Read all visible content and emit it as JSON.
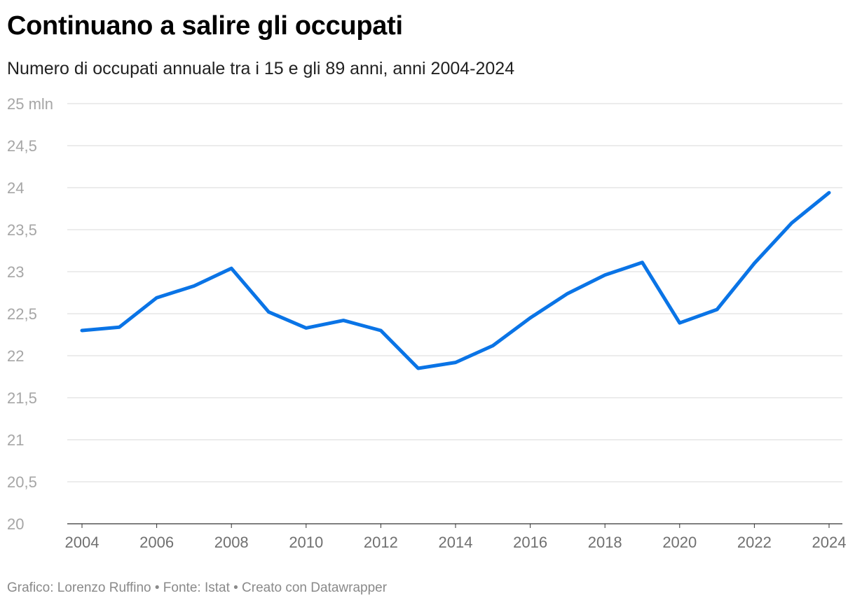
{
  "header": {
    "title": "Continuano a salire gli occupati",
    "subtitle": "Numero di occupati annuale tra i 15 e gli 89 anni, anni 2004-2024"
  },
  "footer": {
    "credit": "Grafico: Lorenzo Ruffino • Fonte: Istat • Creato con Datawrapper"
  },
  "colors": {
    "line": "#0a74e6",
    "grid": "#e0e0e0",
    "y_tick_text": "#a6a6a6",
    "x_tick_text": "#707070"
  },
  "chart_data": {
    "type": "line",
    "title": "Continuano a salire gli occupati",
    "subtitle": "Numero di occupati annuale tra i 15 e gli 89 anni, anni 2004-2024",
    "xlabel": "",
    "ylabel": "",
    "unit": "mln",
    "x": [
      2004,
      2005,
      2006,
      2007,
      2008,
      2009,
      2010,
      2011,
      2012,
      2013,
      2014,
      2015,
      2016,
      2017,
      2018,
      2019,
      2020,
      2021,
      2022,
      2023,
      2024
    ],
    "series": [
      {
        "values": [
          22.3,
          22.34,
          22.69,
          22.83,
          23.04,
          22.52,
          22.33,
          22.42,
          22.3,
          21.85,
          21.92,
          22.12,
          22.45,
          22.74,
          22.96,
          23.11,
          22.39,
          22.55,
          23.1,
          23.58,
          23.94
        ]
      }
    ],
    "xlim": [
      2004,
      2024
    ],
    "ylim": [
      20,
      25
    ],
    "y_ticks": [
      20,
      20.5,
      21,
      21.5,
      22,
      22.5,
      23,
      23.5,
      24,
      24.5,
      25
    ],
    "y_tick_labels": [
      "20",
      "20,5",
      "21",
      "21,5",
      "22",
      "22,5",
      "23",
      "23,5",
      "24",
      "24,5",
      "25 mln"
    ],
    "x_ticks": [
      2004,
      2006,
      2008,
      2010,
      2012,
      2014,
      2016,
      2018,
      2020,
      2022,
      2024
    ],
    "x_tick_labels": [
      "2004",
      "2006",
      "2008",
      "2010",
      "2012",
      "2014",
      "2016",
      "2018",
      "2020",
      "2022",
      "2024"
    ],
    "grid": "horizontal",
    "legend": "none"
  }
}
